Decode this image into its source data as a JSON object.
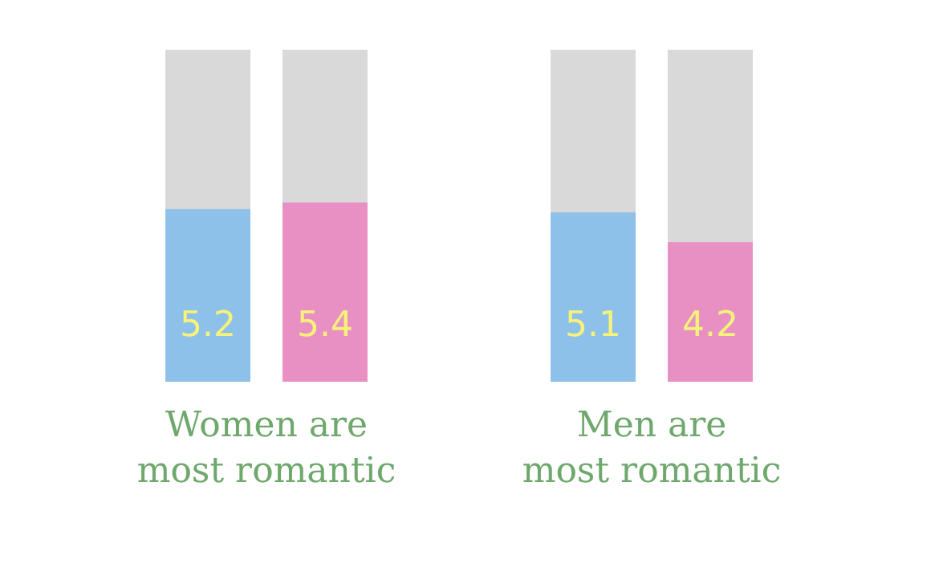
{
  "chart_data": {
    "type": "bar",
    "categories": [
      "Women are\nmost romantic",
      "Men are\nmost romantic"
    ],
    "series": [
      {
        "color": "#8dc1e9",
        "values": [
          5.2,
          5.1
        ]
      },
      {
        "color": "#e890c3",
        "values": [
          5.4,
          4.2
        ]
      }
    ],
    "ylim": [
      0,
      10
    ],
    "data_labels": true,
    "grid": false,
    "legend": false,
    "tick_labels": "x"
  }
}
